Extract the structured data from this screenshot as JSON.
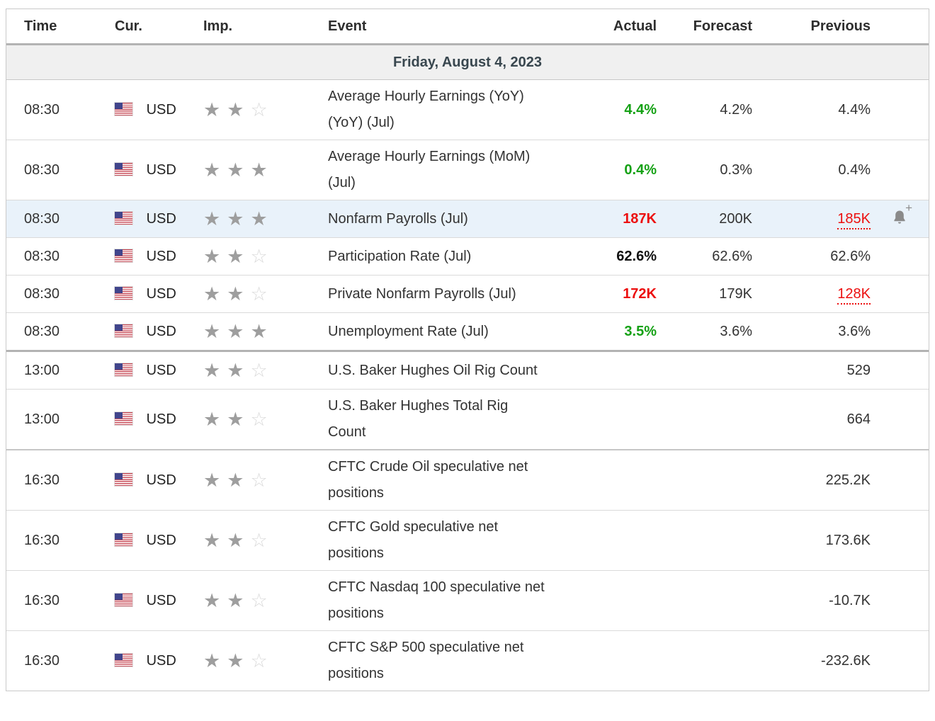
{
  "colors": {
    "green": "#15a115",
    "red": "#ec0f0f",
    "highlight": "#e9f2fa",
    "date_text": "#39474f"
  },
  "header": {
    "time": "Time",
    "cur": "Cur.",
    "imp": "Imp.",
    "event": "Event",
    "actual": "Actual",
    "forecast": "Forecast",
    "previous": "Previous"
  },
  "date_row": {
    "label": "Friday, August 4, 2023"
  },
  "rows": [
    {
      "time": "08:30",
      "currency": "USD",
      "flag": "us",
      "importance": 2,
      "event": "Average Hourly Earnings (YoY) (YoY) (Jul)",
      "actual": "4.4%",
      "actual_style": "green",
      "forecast": "4.2%",
      "previous": "4.4%",
      "previous_style": ""
    },
    {
      "time": "08:30",
      "currency": "USD",
      "flag": "us",
      "importance": 3,
      "event": "Average Hourly Earnings (MoM) (Jul)",
      "actual": "0.4%",
      "actual_style": "green",
      "forecast": "0.3%",
      "previous": "0.4%",
      "previous_style": ""
    },
    {
      "time": "08:30",
      "currency": "USD",
      "flag": "us",
      "importance": 3,
      "event": "Nonfarm Payrolls (Jul)",
      "actual": "187K",
      "actual_style": "red",
      "forecast": "200K",
      "previous": "185K",
      "previous_style": "red-dotted",
      "highlighted": true,
      "alert_icon": "bell-plus"
    },
    {
      "time": "08:30",
      "currency": "USD",
      "flag": "us",
      "importance": 2,
      "event": "Participation Rate (Jul)",
      "actual": "62.6%",
      "actual_style": "black-bold",
      "forecast": "62.6%",
      "previous": "62.6%",
      "previous_style": ""
    },
    {
      "time": "08:30",
      "currency": "USD",
      "flag": "us",
      "importance": 2,
      "event": "Private Nonfarm Payrolls (Jul)",
      "actual": "172K",
      "actual_style": "red",
      "forecast": "179K",
      "previous": "128K",
      "previous_style": "red-dotted"
    },
    {
      "time": "08:30",
      "currency": "USD",
      "flag": "us",
      "importance": 3,
      "event": "Unemployment Rate (Jul)",
      "actual": "3.5%",
      "actual_style": "green",
      "forecast": "3.6%",
      "previous": "3.6%",
      "previous_style": ""
    },
    {
      "time": "13:00",
      "currency": "USD",
      "flag": "us",
      "importance": 2,
      "event": "U.S. Baker Hughes Oil Rig Count",
      "actual": "",
      "actual_style": "",
      "forecast": "",
      "previous": "529",
      "previous_style": ""
    },
    {
      "time": "13:00",
      "currency": "USD",
      "flag": "us",
      "importance": 2,
      "event": "U.S. Baker Hughes Total Rig Count",
      "actual": "",
      "actual_style": "",
      "forecast": "",
      "previous": "664",
      "previous_style": ""
    },
    {
      "time": "16:30",
      "currency": "USD",
      "flag": "us",
      "importance": 2,
      "event": "CFTC Crude Oil speculative net positions",
      "actual": "",
      "actual_style": "",
      "forecast": "",
      "previous": "225.2K",
      "previous_style": ""
    },
    {
      "time": "16:30",
      "currency": "USD",
      "flag": "us",
      "importance": 2,
      "event": "CFTC Gold speculative net positions",
      "actual": "",
      "actual_style": "",
      "forecast": "",
      "previous": "173.6K",
      "previous_style": ""
    },
    {
      "time": "16:30",
      "currency": "USD",
      "flag": "us",
      "importance": 2,
      "event": "CFTC Nasdaq 100 speculative net positions",
      "actual": "",
      "actual_style": "",
      "forecast": "",
      "previous": "-10.7K",
      "previous_style": ""
    },
    {
      "time": "16:30",
      "currency": "USD",
      "flag": "us",
      "importance": 2,
      "event": "CFTC S&P 500 speculative net positions",
      "actual": "",
      "actual_style": "",
      "forecast": "",
      "previous": "-232.6K",
      "previous_style": ""
    }
  ]
}
